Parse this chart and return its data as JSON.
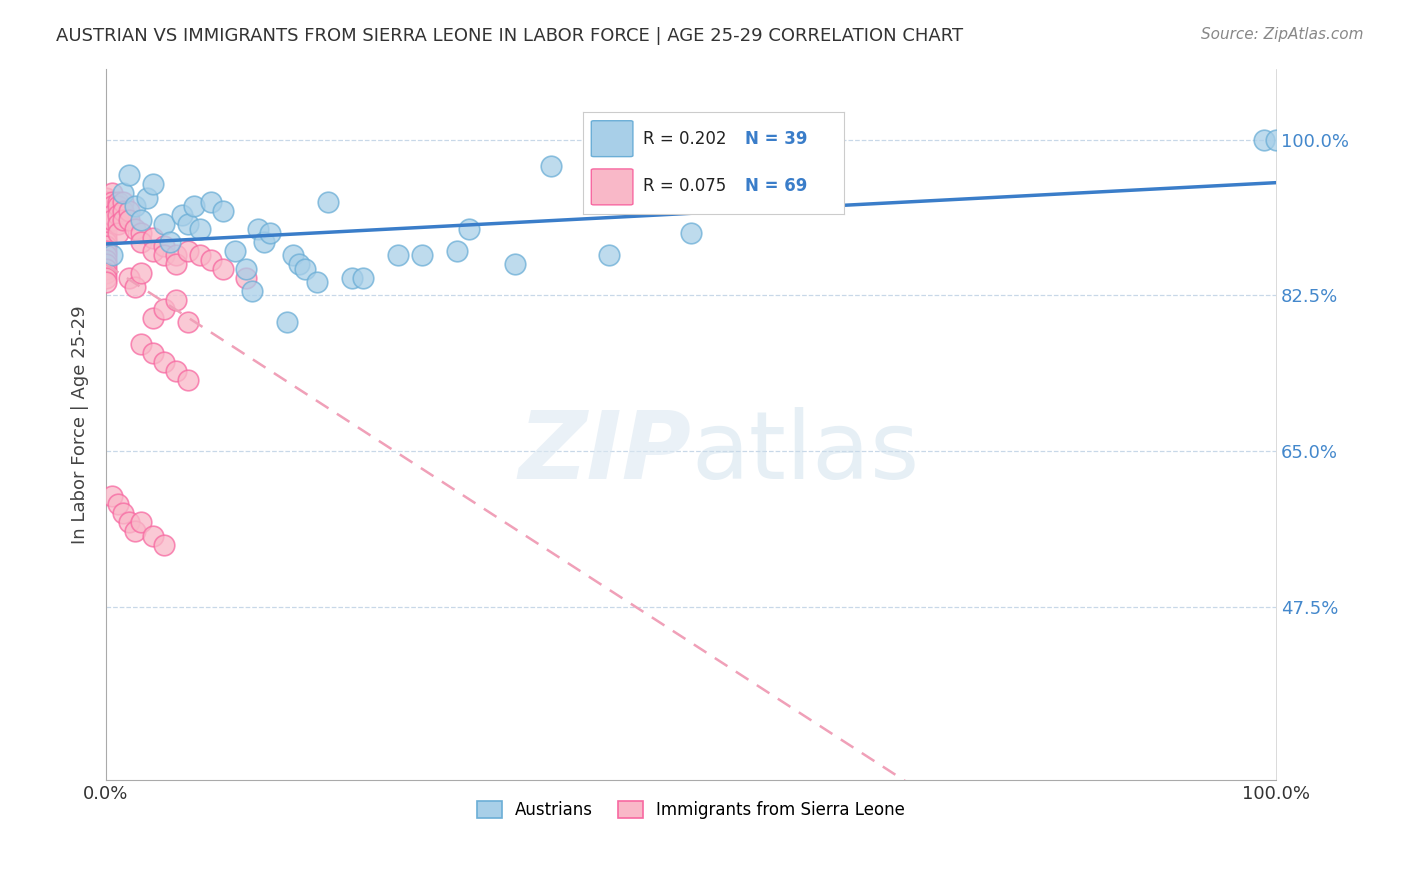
{
  "title": "AUSTRIAN VS IMMIGRANTS FROM SIERRA LEONE IN LABOR FORCE | AGE 25-29 CORRELATION CHART",
  "source": "Source: ZipAtlas.com",
  "ylabel": "In Labor Force | Age 25-29",
  "xlim": [
    0,
    1.0
  ],
  "ylim": [
    0.28,
    1.08
  ],
  "yticks": [
    0.475,
    0.65,
    0.825,
    1.0
  ],
  "ytick_labels": [
    "47.5%",
    "65.0%",
    "82.5%",
    "100.0%"
  ],
  "xticks": [
    0.0,
    1.0
  ],
  "xtick_labels": [
    "0.0%",
    "100.0%"
  ],
  "legend_r_blue": "R = 0.202",
  "legend_n_blue": "N = 39",
  "legend_r_pink": "R = 0.075",
  "legend_n_pink": "N = 69",
  "legend_label_blue": "Austrians",
  "legend_label_pink": "Immigrants from Sierra Leone",
  "blue_color": "#a8cfe8",
  "blue_edge_color": "#6baed6",
  "pink_color": "#f9b8c8",
  "pink_edge_color": "#f768a1",
  "trend_blue": "#3a7dc9",
  "trend_pink": "#f0a0b8",
  "blue_scatter_x": [
    0.005,
    0.015,
    0.02,
    0.025,
    0.03,
    0.035,
    0.04,
    0.05,
    0.055,
    0.065,
    0.07,
    0.075,
    0.08,
    0.09,
    0.1,
    0.11,
    0.12,
    0.125,
    0.13,
    0.135,
    0.14,
    0.155,
    0.16,
    0.165,
    0.17,
    0.18,
    0.19,
    0.21,
    0.22,
    0.25,
    0.27,
    0.3,
    0.31,
    0.35,
    0.38,
    0.43,
    0.5,
    0.99,
    1.0
  ],
  "blue_scatter_y": [
    0.87,
    0.94,
    0.96,
    0.925,
    0.91,
    0.935,
    0.95,
    0.905,
    0.885,
    0.915,
    0.905,
    0.925,
    0.9,
    0.93,
    0.92,
    0.875,
    0.855,
    0.83,
    0.9,
    0.885,
    0.895,
    0.795,
    0.87,
    0.86,
    0.855,
    0.84,
    0.93,
    0.845,
    0.845,
    0.87,
    0.87,
    0.875,
    0.9,
    0.86,
    0.97,
    0.87,
    0.895,
    1.0,
    1.0
  ],
  "pink_scatter_x": [
    0.0,
    0.0,
    0.0,
    0.0,
    0.0,
    0.0,
    0.0,
    0.0,
    0.0,
    0.0,
    0.0,
    0.0,
    0.0,
    0.0,
    0.0,
    0.0,
    0.0,
    0.0,
    0.0,
    0.0,
    0.005,
    0.005,
    0.005,
    0.005,
    0.005,
    0.01,
    0.01,
    0.01,
    0.01,
    0.01,
    0.015,
    0.015,
    0.015,
    0.02,
    0.02,
    0.025,
    0.03,
    0.03,
    0.04,
    0.04,
    0.05,
    0.05,
    0.06,
    0.06,
    0.07,
    0.08,
    0.09,
    0.1,
    0.12,
    0.02,
    0.025,
    0.03,
    0.04,
    0.05,
    0.06,
    0.07,
    0.03,
    0.04,
    0.05,
    0.06,
    0.07,
    0.005,
    0.01,
    0.015,
    0.02,
    0.025,
    0.03,
    0.04,
    0.05
  ],
  "pink_scatter_y": [
    0.935,
    0.93,
    0.925,
    0.92,
    0.915,
    0.91,
    0.905,
    0.9,
    0.895,
    0.89,
    0.885,
    0.88,
    0.875,
    0.87,
    0.865,
    0.86,
    0.855,
    0.85,
    0.845,
    0.84,
    0.94,
    0.93,
    0.925,
    0.915,
    0.91,
    0.93,
    0.925,
    0.915,
    0.905,
    0.895,
    0.93,
    0.92,
    0.91,
    0.92,
    0.91,
    0.9,
    0.895,
    0.885,
    0.89,
    0.875,
    0.88,
    0.87,
    0.87,
    0.86,
    0.875,
    0.87,
    0.865,
    0.855,
    0.845,
    0.845,
    0.835,
    0.85,
    0.8,
    0.81,
    0.82,
    0.795,
    0.77,
    0.76,
    0.75,
    0.74,
    0.73,
    0.6,
    0.59,
    0.58,
    0.57,
    0.56,
    0.57,
    0.555,
    0.545
  ],
  "watermark_zip": "ZIP",
  "watermark_atlas": "atlas",
  "background_color": "#ffffff",
  "grid_color": "#c8d8e8"
}
